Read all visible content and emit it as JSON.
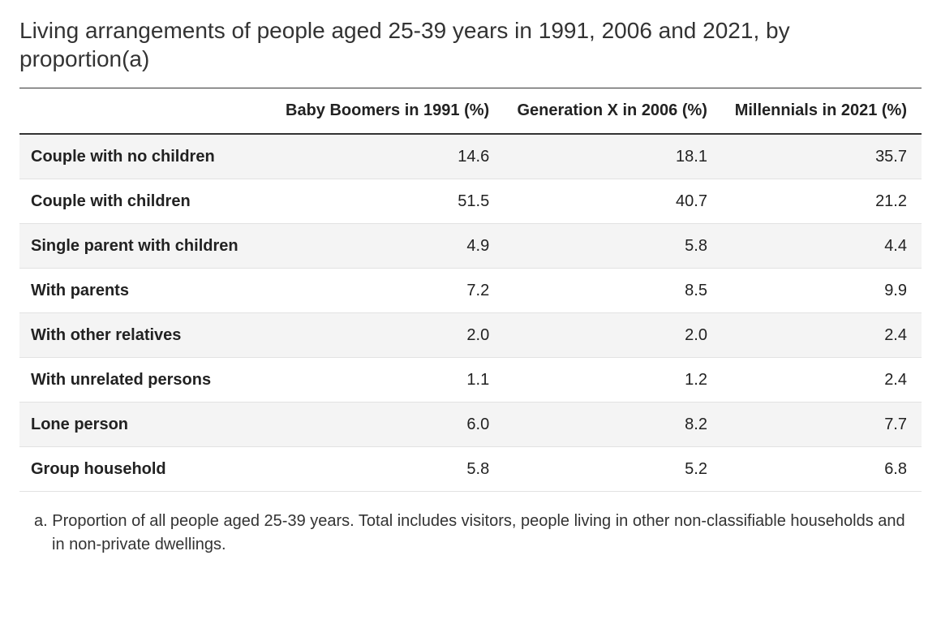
{
  "title": "Living arrangements of people aged 25-39 years in 1991, 2006 and 2021, by proportion(a)",
  "table": {
    "type": "table",
    "background_color": "#ffffff",
    "alt_row_color": "#f4f4f4",
    "border_color_heavy": "#333333",
    "border_color_light": "#e2e2e2",
    "header_fontsize": 20,
    "header_fontweight": 700,
    "cell_fontsize": 20,
    "rowlabel_fontweight": 700,
    "text_color": "#222222",
    "column_alignment": [
      "left",
      "right",
      "right",
      "right"
    ],
    "column_widths_pct": [
      28,
      24,
      24,
      24
    ],
    "columns": [
      "",
      "Baby Boomers in 1991 (%)",
      "Generation X in 2006 (%)",
      "Millennials in 2021 (%)"
    ],
    "rows": [
      [
        "Couple with no children",
        "14.6",
        "18.1",
        "35.7"
      ],
      [
        "Couple with children",
        "51.5",
        "40.7",
        "21.2"
      ],
      [
        "Single parent with children",
        "4.9",
        "5.8",
        "4.4"
      ],
      [
        "With parents",
        "7.2",
        "8.5",
        "9.9"
      ],
      [
        "With other relatives",
        "2.0",
        "2.0",
        "2.4"
      ],
      [
        "With unrelated persons",
        "1.1",
        "1.2",
        "2.4"
      ],
      [
        "Lone person",
        "6.0",
        "8.2",
        "7.7"
      ],
      [
        "Group household",
        "5.8",
        "5.2",
        "6.8"
      ]
    ]
  },
  "footnote": "a. Proportion of all people aged 25-39 years. Total includes visitors, people living in other non-classifiable households and in non-private dwellings."
}
